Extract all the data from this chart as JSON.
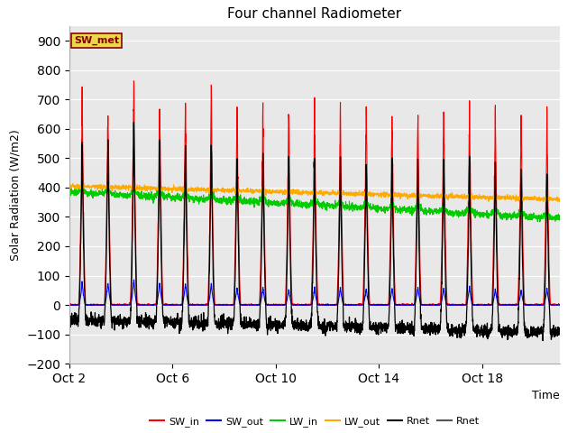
{
  "title": "Four channel Radiometer",
  "xlabel": "Time",
  "ylabel": "Solar Radiation (W/m2)",
  "ylim": [
    -200,
    950
  ],
  "yticks": [
    -200,
    -100,
    0,
    100,
    200,
    300,
    400,
    500,
    600,
    700,
    800,
    900
  ],
  "plot_bg_color": "#e8e8e8",
  "annotation_text": "SW_met",
  "annotation_bg": "#e8d84a",
  "annotation_text_color": "#8B0000",
  "annotation_edge": "#8B0000",
  "legend_entries": [
    "SW_in",
    "SW_out",
    "LW_in",
    "LW_out",
    "Rnet",
    "Rnet"
  ],
  "line_colors": [
    "#ff0000",
    "#0000ff",
    "#00cc00",
    "#ffaa00",
    "#000000",
    "#555555"
  ],
  "n_days": 19,
  "x_tick_labels": [
    "Oct 2",
    "Oct 6",
    "Oct 10",
    "Oct 14",
    "Oct 18"
  ],
  "x_tick_positions": [
    0,
    4,
    8,
    12,
    16
  ],
  "xlim": [
    0,
    19
  ]
}
